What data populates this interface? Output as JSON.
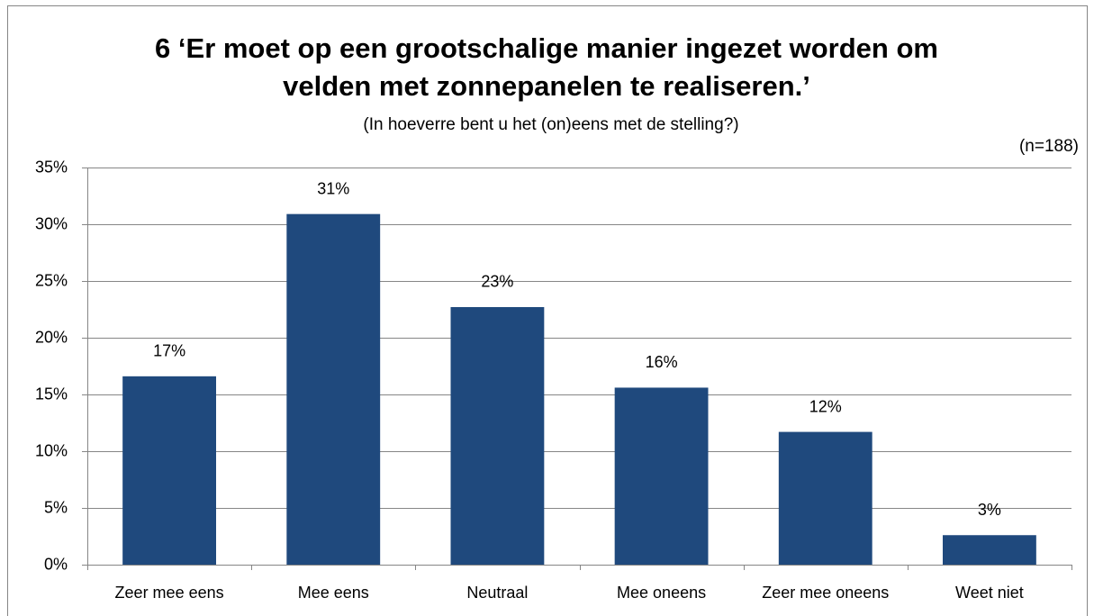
{
  "chart_data": {
    "type": "bar",
    "title": [
      "6 ‘Er moet op een grootschalige manier ingezet worden om",
      "velden met zonnepanelen te realiseren.’"
    ],
    "subtitle": "(In hoeverre bent u het (on)eens met de stelling?)",
    "annotation": "(n=188)",
    "categories": [
      "Zeer mee eens",
      "Mee eens",
      "Neutraal",
      "Mee oneens",
      "Zeer mee oneens",
      "Weet niet"
    ],
    "values": [
      16.6,
      30.9,
      22.7,
      15.6,
      11.7,
      2.6
    ],
    "value_labels": [
      "17%",
      "31%",
      "23%",
      "16%",
      "12%",
      "3%"
    ],
    "color": "#1f497d",
    "ylim": [
      0,
      35
    ],
    "yticks": [
      {
        "value": 0,
        "label": "0%"
      },
      {
        "value": 5,
        "label": "5%"
      },
      {
        "value": 10,
        "label": "10%"
      },
      {
        "value": 15,
        "label": "15%"
      },
      {
        "value": 20,
        "label": "20%"
      },
      {
        "value": 25,
        "label": "25%"
      },
      {
        "value": 30,
        "label": "30%"
      },
      {
        "value": 35,
        "label": "35%"
      }
    ],
    "grid": true
  }
}
